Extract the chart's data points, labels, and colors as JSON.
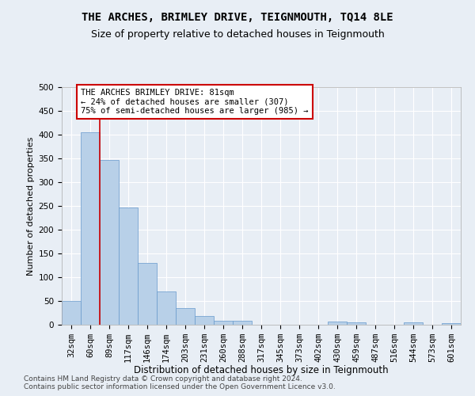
{
  "title": "THE ARCHES, BRIMLEY DRIVE, TEIGNMOUTH, TQ14 8LE",
  "subtitle": "Size of property relative to detached houses in Teignmouth",
  "xlabel": "Distribution of detached houses by size in Teignmouth",
  "ylabel": "Number of detached properties",
  "categories": [
    "32sqm",
    "60sqm",
    "89sqm",
    "117sqm",
    "146sqm",
    "174sqm",
    "203sqm",
    "231sqm",
    "260sqm",
    "288sqm",
    "317sqm",
    "345sqm",
    "373sqm",
    "402sqm",
    "430sqm",
    "459sqm",
    "487sqm",
    "516sqm",
    "544sqm",
    "573sqm",
    "601sqm"
  ],
  "values": [
    50,
    405,
    347,
    246,
    130,
    70,
    35,
    18,
    8,
    8,
    0,
    0,
    0,
    0,
    6,
    5,
    0,
    0,
    5,
    0,
    3
  ],
  "bar_color": "#b8d0e8",
  "bar_edgecolor": "#6699cc",
  "reference_line_x": 1,
  "reference_line_color": "#cc0000",
  "annotation_text": "THE ARCHES BRIMLEY DRIVE: 81sqm\n← 24% of detached houses are smaller (307)\n75% of semi-detached houses are larger (985) →",
  "annotation_box_facecolor": "#ffffff",
  "annotation_box_edgecolor": "#cc0000",
  "ylim": [
    0,
    500
  ],
  "yticks": [
    0,
    50,
    100,
    150,
    200,
    250,
    300,
    350,
    400,
    450,
    500
  ],
  "footer1": "Contains HM Land Registry data © Crown copyright and database right 2024.",
  "footer2": "Contains public sector information licensed under the Open Government Licence v3.0.",
  "title_fontsize": 10,
  "subtitle_fontsize": 9,
  "xlabel_fontsize": 8.5,
  "ylabel_fontsize": 8,
  "tick_fontsize": 7.5,
  "annotation_fontsize": 7.5,
  "footer_fontsize": 6.5,
  "bg_color": "#e8eef5",
  "plot_bg_color": "#e8eef5",
  "grid_color": "#ffffff"
}
